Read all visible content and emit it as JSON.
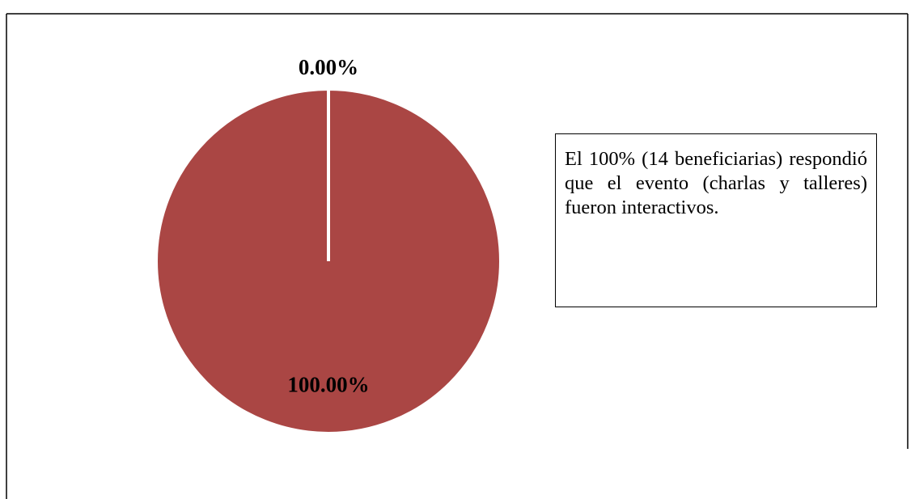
{
  "chart_data": {
    "type": "pie",
    "values": [
      0,
      100
    ],
    "value_labels": [
      "0.00%",
      "100.00%"
    ],
    "color": "#aa4644",
    "annotation": "El 100% (14 beneficiarias) respondió que el evento (charlas y talleres) fueron interactivos."
  }
}
